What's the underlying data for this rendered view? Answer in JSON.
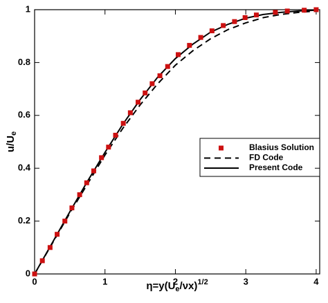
{
  "chart_data": {
    "type": "line",
    "xlabel": [
      "η=y(U",
      "e",
      "/νx)",
      "1/2"
    ],
    "ylabel": [
      "u/U",
      "e"
    ],
    "xlim": [
      0,
      4.05
    ],
    "ylim": [
      0,
      1
    ],
    "xticks": [
      0,
      1,
      2,
      3,
      4
    ],
    "yticks": [
      0,
      0.2,
      0.4,
      0.6,
      0.8,
      1
    ],
    "legend": "center right",
    "series": [
      {
        "name": "Blasius Solution",
        "color": "#cc1111",
        "style": "marker",
        "x": [
          0,
          0.11,
          0.22,
          0.32,
          0.43,
          0.53,
          0.64,
          0.74,
          0.84,
          0.95,
          1.05,
          1.15,
          1.26,
          1.36,
          1.47,
          1.57,
          1.67,
          1.78,
          1.89,
          2.04,
          2.2,
          2.36,
          2.52,
          2.68,
          2.84,
          2.99,
          3.15,
          3.42,
          3.59,
          3.83,
          4.0
        ],
        "values": [
          0,
          0.05,
          0.1,
          0.15,
          0.2,
          0.25,
          0.3,
          0.345,
          0.39,
          0.44,
          0.48,
          0.525,
          0.57,
          0.61,
          0.65,
          0.685,
          0.72,
          0.75,
          0.785,
          0.83,
          0.865,
          0.895,
          0.92,
          0.94,
          0.955,
          0.97,
          0.98,
          0.99,
          0.995,
          0.998,
          1.0
        ]
      },
      {
        "name": "FD Code",
        "color": "#000000",
        "style": "dashed",
        "x": [
          0,
          0.25,
          0.5,
          0.75,
          1,
          1.25,
          1.5,
          1.75,
          2,
          2.25,
          2.5,
          2.75,
          3,
          3.25,
          3.5,
          3.75,
          4
        ],
        "values": [
          0,
          0.115,
          0.23,
          0.34,
          0.45,
          0.55,
          0.64,
          0.72,
          0.79,
          0.845,
          0.89,
          0.925,
          0.95,
          0.97,
          0.982,
          0.99,
          0.995
        ]
      },
      {
        "name": "Present Code",
        "color": "#000000",
        "style": "solid",
        "x": [
          0,
          0.25,
          0.5,
          0.75,
          1,
          1.25,
          1.5,
          1.75,
          2,
          2.25,
          2.5,
          2.75,
          3,
          3.25,
          3.5,
          3.75,
          4
        ],
        "values": [
          0,
          0.117,
          0.235,
          0.35,
          0.46,
          0.565,
          0.66,
          0.745,
          0.815,
          0.87,
          0.915,
          0.945,
          0.968,
          0.982,
          0.99,
          0.995,
          0.998
        ]
      }
    ]
  }
}
